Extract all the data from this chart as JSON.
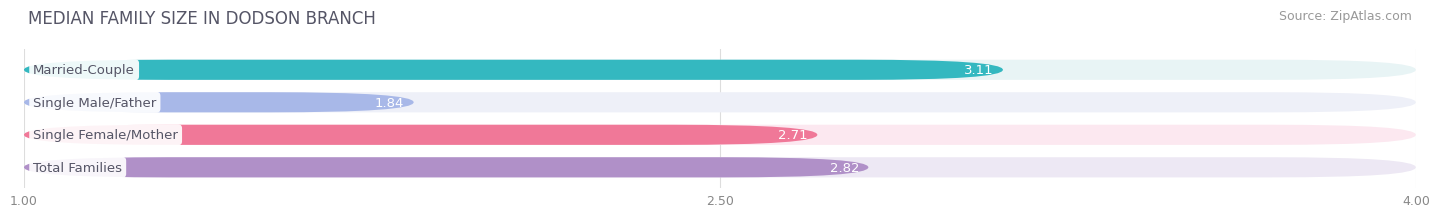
{
  "title": "MEDIAN FAMILY SIZE IN DODSON BRANCH",
  "source": "Source: ZipAtlas.com",
  "categories": [
    "Married-Couple",
    "Single Male/Father",
    "Single Female/Mother",
    "Total Families"
  ],
  "values": [
    3.11,
    1.84,
    2.71,
    2.82
  ],
  "bar_colors": [
    "#34b8c0",
    "#a8b8e8",
    "#f07898",
    "#b090c8"
  ],
  "bar_bg_colors": [
    "#e8f4f5",
    "#eef0f8",
    "#fce8f0",
    "#ede8f4"
  ],
  "value_labels": [
    "3.11",
    "1.84",
    "2.71",
    "2.82"
  ],
  "xlim_min": 1.0,
  "xlim_max": 4.0,
  "xticks": [
    1.0,
    2.5,
    4.0
  ],
  "xtick_labels": [
    "1.00",
    "2.50",
    "4.00"
  ],
  "title_fontsize": 12,
  "source_fontsize": 9,
  "label_fontsize": 9.5,
  "value_fontsize": 9.5,
  "tick_fontsize": 9,
  "bar_height": 0.62,
  "background_color": "#ffffff",
  "title_color": "#555566",
  "source_color": "#999999",
  "label_text_color": "#555566",
  "value_text_color": "#ffffff",
  "grid_color": "#dddddd"
}
